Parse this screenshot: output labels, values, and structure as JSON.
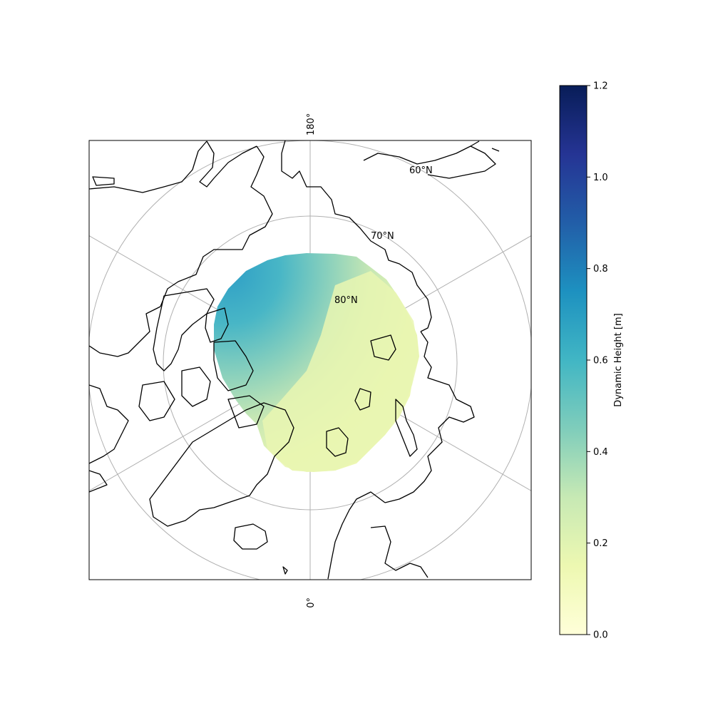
{
  "map": {
    "projection": "north-polar-stereographic",
    "graticule": {
      "latitude_circles": [
        60,
        70,
        80
      ],
      "latitude_labels": [
        "60°N",
        "70°N",
        "80°N"
      ],
      "meridian_step_deg": 60,
      "meridian_labels": {
        "top": "180°",
        "bottom": "0°"
      },
      "grid_color": "#b0b0b0"
    },
    "coastline_color": "#000000",
    "data_field": "Dynamic Height",
    "data_region": "Arctic Ocean basin, north of ~72°N"
  },
  "colorbar": {
    "label": "Dynamic Height [m]",
    "cmap": "YlGnBu",
    "range": [
      0.0,
      1.2
    ],
    "ticks": [
      "0.0",
      "0.2",
      "0.4",
      "0.6",
      "0.8",
      "1.0",
      "1.2"
    ],
    "colors": [
      "#ffffd9",
      "#edf8b1",
      "#c7e9b4",
      "#7fcdbb",
      "#41b6c4",
      "#1d91c0",
      "#225ea8",
      "#253494",
      "#081d58"
    ]
  }
}
